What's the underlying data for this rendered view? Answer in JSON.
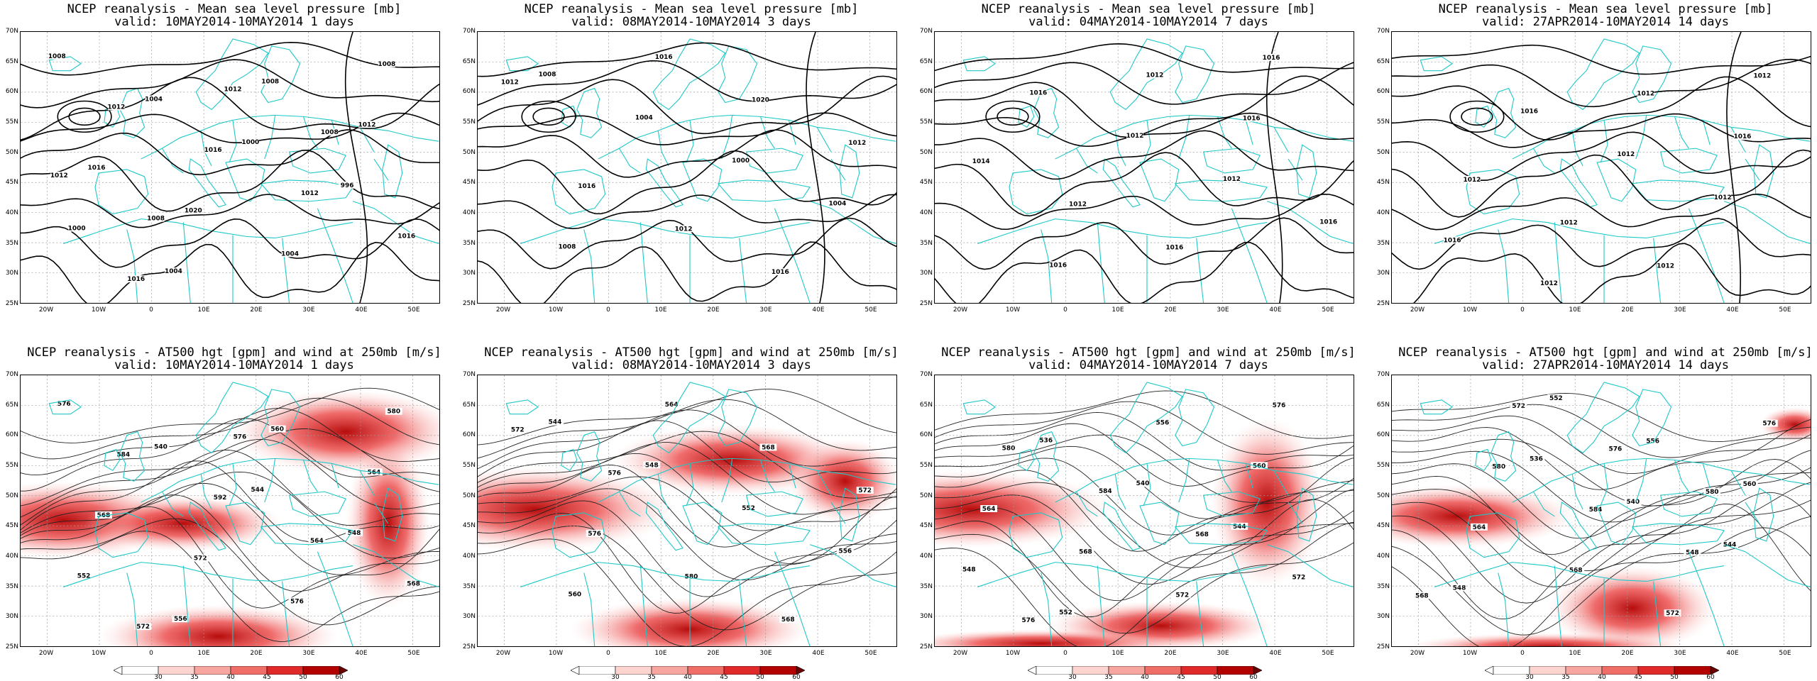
{
  "panels": [
    {
      "title": "NCEP reanalysis - Mean sea level pressure [mb]",
      "valid": "valid: 10MAY2014-10MAY2014  1 days",
      "kind": "mslp",
      "labels": [
        "1008",
        "1004",
        "1000",
        "996",
        "1000",
        "1004",
        "1008",
        "1012",
        "1016",
        "1020",
        "1004",
        "1008",
        "1012",
        "1016",
        "1012",
        "1016",
        "1016",
        "1012",
        "1008",
        "1012",
        "1008"
      ]
    },
    {
      "title": "NCEP reanalysis - Mean sea level pressure [mb]",
      "valid": "valid: 08MAY2014-10MAY2014  3 days",
      "kind": "mslp",
      "labels": [
        "1008",
        "1004",
        "1000",
        "1004",
        "1008",
        "1016",
        "1020",
        "1012",
        "1016",
        "1012",
        "1016",
        "1012"
      ]
    },
    {
      "title": "NCEP reanalysis - Mean sea level pressure [mb]",
      "valid": "valid: 04MAY2014-10MAY2014  7 days",
      "kind": "mslp",
      "labels": [
        "1016",
        "1012",
        "1012",
        "1016",
        "1016",
        "1012",
        "1016",
        "1014",
        "1012",
        "1016",
        "1016"
      ]
    },
    {
      "title": "NCEP reanalysis - Mean sea level pressure [mb]",
      "valid": "valid: 27APR2014-10MAY2014  14 days",
      "kind": "mslp",
      "labels": [
        "1016",
        "1012",
        "1012",
        "1016",
        "1012",
        "1012",
        "1016",
        "1012",
        "1012",
        "1012",
        "1012"
      ]
    },
    {
      "title": "NCEP reanalysis - AT500 hgt [gpm] and wind at 250mb [m/s]",
      "valid": "valid: 10MAY2014-10MAY2014  1 days",
      "kind": "z500",
      "labels": [
        "576",
        "540",
        "544",
        "548",
        "552",
        "556",
        "560",
        "564",
        "568",
        "572",
        "576",
        "580",
        "584",
        "592",
        "564",
        "568",
        "572",
        "576"
      ]
    },
    {
      "title": "NCEP reanalysis - AT500 hgt [gpm] and wind at 250mb [m/s]",
      "valid": "valid: 08MAY2014-10MAY2014  3 days",
      "kind": "z500",
      "labels": [
        "544",
        "548",
        "552",
        "556",
        "560",
        "564",
        "568",
        "572",
        "576",
        "580",
        "568",
        "572",
        "576"
      ]
    },
    {
      "title": "NCEP reanalysis - AT500 hgt [gpm] and wind at 250mb [m/s]",
      "valid": "valid: 04MAY2014-10MAY2014  7 days",
      "kind": "z500",
      "labels": [
        "536",
        "540",
        "544",
        "548",
        "552",
        "556",
        "560",
        "564",
        "568",
        "572",
        "576",
        "580",
        "584",
        "568",
        "572",
        "576"
      ]
    },
    {
      "title": "NCEP reanalysis - AT500 hgt [gpm] and wind at 250mb [m/s]",
      "valid": "valid: 27APR2014-10MAY2014  14 days",
      "kind": "z500",
      "labels": [
        "536",
        "540",
        "544",
        "548",
        "552",
        "556",
        "560",
        "564",
        "568",
        "572",
        "576",
        "580",
        "584",
        "548",
        "568",
        "572",
        "576",
        "580"
      ]
    }
  ],
  "lat_ticks": [
    "70N",
    "65N",
    "60N",
    "55N",
    "50N",
    "45N",
    "40N",
    "35N",
    "30N",
    "25N"
  ],
  "lon_ticks": [
    "20W",
    "10W",
    "0",
    "10E",
    "20E",
    "30E",
    "40E",
    "50E"
  ],
  "colorbar_labels": [
    "30",
    "35",
    "40",
    "45",
    "50",
    "60"
  ],
  "colors": {
    "coast": "#1ec8c8",
    "contour": "#000000",
    "wind_low": "#fcd4d0",
    "wind_high": "#8b0000"
  }
}
